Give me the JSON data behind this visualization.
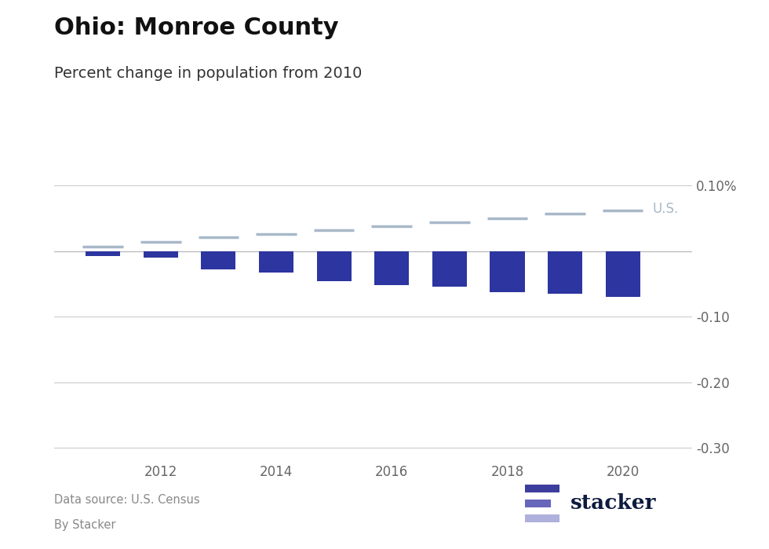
{
  "title": "Ohio: Monroe County",
  "subtitle": "Percent change in population from 2010",
  "years": [
    2011,
    2012,
    2013,
    2014,
    2015,
    2016,
    2017,
    2018,
    2019,
    2020
  ],
  "county_values": [
    -0.008,
    -0.01,
    -0.028,
    -0.033,
    -0.046,
    -0.052,
    -0.054,
    -0.062,
    -0.065,
    -0.07
  ],
  "us_values": [
    0.007,
    0.014,
    0.021,
    0.026,
    0.032,
    0.038,
    0.044,
    0.05,
    0.057,
    0.062
  ],
  "bar_color": "#2d35a0",
  "us_line_color": "#a8b8c8",
  "us_label_color": "#a8b8c8",
  "ylim": [
    -0.32,
    0.115
  ],
  "yticks": [
    0.1,
    0.0,
    -0.1,
    -0.2,
    -0.3
  ],
  "ytick_labels": [
    "0.10%",
    "",
    "-0.10",
    "-0.20",
    "-0.30"
  ],
  "footer_source": "Data source: U.S. Census",
  "footer_by": "By Stacker",
  "background_color": "#ffffff",
  "grid_color": "#cccccc",
  "title_fontsize": 22,
  "subtitle_fontsize": 14,
  "tick_fontsize": 12,
  "logo_bar_colors": [
    "#3d3d9e",
    "#6666bb",
    "#b0b0dd"
  ],
  "logo_text_color": "#0d1b3e"
}
